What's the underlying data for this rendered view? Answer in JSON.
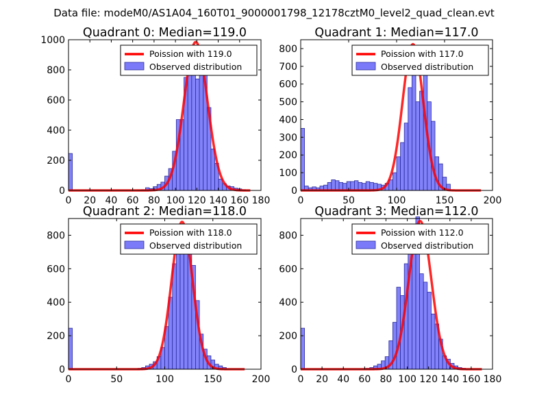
{
  "figure_title": "Data file: modeM0/AS1A04_160T01_9000001798_12178cztM0_level2_quad_clean.evt",
  "colors": {
    "bars": "#7b7bfa",
    "bar_edge": "#2a2a9a",
    "poisson": "#ff0000",
    "background": "#ffffff"
  },
  "chart_data": [
    {
      "type": "bar",
      "title": "Quadrant 0: Median=119.0",
      "xlim": [
        0,
        180
      ],
      "ylim": [
        0,
        1000
      ],
      "xticks": [
        0,
        20,
        40,
        60,
        80,
        100,
        120,
        140,
        160,
        180
      ],
      "yticks": [
        0,
        200,
        400,
        600,
        800,
        1000
      ],
      "bin_width": 3.6,
      "bins_left": [
        0,
        64.8,
        68.4,
        72,
        75.6,
        79.2,
        82.8,
        86.4,
        90,
        93.6,
        97.2,
        100.8,
        104.4,
        108,
        111.6,
        115.2,
        118.8,
        122.4,
        126,
        129.6,
        133.2,
        136.8,
        140.4,
        144,
        147.6,
        151.2,
        154.8,
        158.4,
        162
      ],
      "counts": [
        245,
        2,
        5,
        18,
        12,
        25,
        40,
        55,
        95,
        145,
        260,
        470,
        470,
        750,
        820,
        880,
        740,
        885,
        780,
        550,
        275,
        180,
        75,
        45,
        30,
        25,
        15,
        10,
        5
      ],
      "legend": [
        "Poission with 119.0",
        "Observed distribution"
      ],
      "poisson_mean": 119.0,
      "poisson_peak": 985,
      "poisson_xrange": [
        0,
        170
      ]
    },
    {
      "type": "bar",
      "title": "Quadrant 1: Median=117.0",
      "xlim": [
        0,
        200
      ],
      "ylim": [
        0,
        850
      ],
      "xticks": [
        0,
        50,
        100,
        150,
        200
      ],
      "yticks": [
        0,
        100,
        200,
        300,
        400,
        500,
        600,
        700,
        800
      ],
      "bin_width": 4.0,
      "bins_left": [
        0,
        4,
        8,
        12,
        16,
        20,
        24,
        28,
        32,
        36,
        40,
        44,
        48,
        52,
        56,
        60,
        64,
        68,
        72,
        76,
        80,
        84,
        88,
        92,
        96,
        100,
        104,
        108,
        112,
        116,
        120,
        124,
        128,
        132,
        136,
        140,
        144,
        148,
        152
      ],
      "counts": [
        350,
        25,
        15,
        20,
        15,
        25,
        30,
        45,
        60,
        55,
        45,
        40,
        50,
        50,
        55,
        45,
        40,
        50,
        45,
        40,
        35,
        30,
        40,
        60,
        100,
        190,
        270,
        380,
        580,
        660,
        500,
        560,
        770,
        500,
        390,
        190,
        150,
        75,
        35
      ],
      "legend": [
        "Poission with 117.0",
        "Observed distribution"
      ],
      "poisson_mean": 117.0,
      "poisson_peak": 825,
      "poisson_xrange": [
        0,
        188
      ]
    },
    {
      "type": "bar",
      "title": "Quadrant 2: Median=118.0",
      "xlim": [
        0,
        200
      ],
      "ylim": [
        0,
        900
      ],
      "xticks": [
        0,
        50,
        100,
        150,
        200
      ],
      "yticks": [
        0,
        200,
        400,
        600,
        800
      ],
      "bin_width": 4.0,
      "bins_left": [
        0,
        72,
        76,
        80,
        84,
        88,
        92,
        96,
        100,
        104,
        108,
        112,
        116,
        120,
        124,
        128,
        132,
        136,
        140,
        144,
        148,
        152,
        156,
        160
      ],
      "counts": [
        245,
        5,
        10,
        20,
        30,
        45,
        75,
        130,
        255,
        430,
        630,
        830,
        850,
        860,
        840,
        620,
        410,
        210,
        120,
        80,
        55,
        30,
        20,
        10
      ],
      "legend": [
        "Poission with 118.0",
        "Observed distribution"
      ],
      "poisson_mean": 118.0,
      "poisson_peak": 880,
      "poisson_xrange": [
        0,
        183
      ]
    },
    {
      "type": "bar",
      "title": "Quadrant 3: Median=112.0",
      "xlim": [
        0,
        180
      ],
      "ylim": [
        0,
        900
      ],
      "xticks": [
        0,
        20,
        40,
        60,
        80,
        100,
        120,
        140,
        160,
        180
      ],
      "yticks": [
        0,
        200,
        400,
        600,
        800
      ],
      "bin_width": 3.6,
      "bins_left": [
        0,
        61.2,
        64.8,
        68.4,
        72,
        75.6,
        79.2,
        82.8,
        86.4,
        90,
        93.6,
        97.2,
        100.8,
        104.4,
        108,
        111.6,
        115.2,
        118.8,
        122.4,
        126,
        129.6,
        133.2,
        136.8,
        140.4,
        144,
        147.6,
        151.2
      ],
      "counts": [
        245,
        5,
        10,
        20,
        30,
        50,
        75,
        170,
        280,
        490,
        440,
        630,
        850,
        810,
        910,
        570,
        520,
        460,
        330,
        270,
        180,
        80,
        60,
        35,
        20,
        10,
        5
      ],
      "legend": [
        "Poission with 112.0",
        "Observed distribution"
      ],
      "poisson_mean": 112.0,
      "poisson_peak": 885,
      "poisson_xrange": [
        0,
        170
      ]
    }
  ]
}
